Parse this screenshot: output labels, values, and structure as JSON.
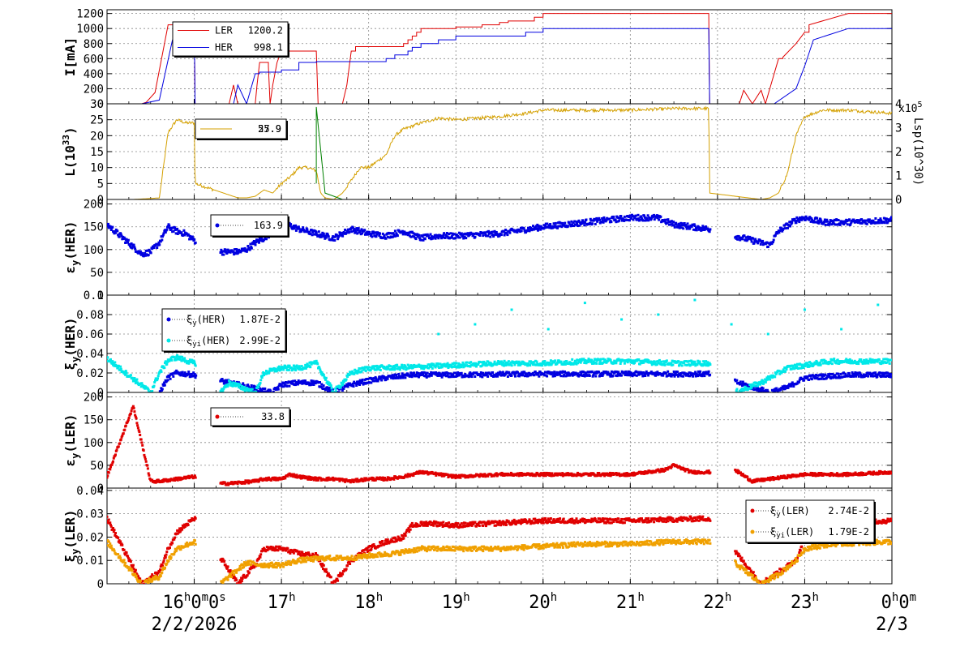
{
  "chart_data": [
    {
      "type": "line",
      "ylabel": "I[mA]",
      "yticks": [
        "0",
        "200",
        "400",
        "600",
        "800",
        "1000",
        "1200"
      ],
      "ylim": [
        0,
        1250
      ],
      "legend": [
        {
          "name": "LER",
          "value": "1200.2",
          "color": "#e00000"
        },
        {
          "name": "HER",
          "value": "998.1",
          "color": "#0000e0"
        }
      ],
      "series": [
        {
          "name": "LER",
          "color": "#e00000",
          "x": [
            15.0,
            15.3,
            15.4,
            15.45,
            15.55,
            15.7,
            15.85,
            16.0,
            16.01,
            16.4,
            16.45,
            16.5,
            16.6,
            16.7,
            16.72,
            16.75,
            16.8,
            16.85,
            16.87,
            16.9,
            16.95,
            17.0,
            17.2,
            17.3,
            17.4,
            17.42,
            17.6,
            17.7,
            17.75,
            17.8,
            17.85,
            18.0,
            18.2,
            18.3,
            18.4,
            18.45,
            18.5,
            18.55,
            18.6,
            18.7,
            19.0,
            19.3,
            19.5,
            19.6,
            19.9,
            20.0,
            20.5,
            21.0,
            21.9,
            21.91,
            22.2,
            22.25,
            22.3,
            22.4,
            22.5,
            22.55,
            22.6,
            22.7,
            22.75,
            22.9,
            23.0,
            23.05,
            23.5,
            24.0
          ],
          "y": [
            0,
            0,
            0,
            20,
            150,
            1050,
            1080,
            1050,
            0,
            0,
            250,
            0,
            0,
            0,
            250,
            550,
            550,
            500,
            0,
            250,
            550,
            700,
            700,
            700,
            700,
            0,
            0,
            0,
            250,
            700,
            760,
            760,
            760,
            760,
            800,
            850,
            900,
            950,
            1000,
            1000,
            1020,
            1050,
            1080,
            1100,
            1150,
            1200,
            1200,
            1200,
            1200,
            0,
            0,
            0,
            180,
            0,
            180,
            0,
            200,
            600,
            620,
            800,
            950,
            1050,
            1200,
            1200
          ]
        },
        {
          "name": "HER",
          "color": "#0000e0",
          "x": [
            15.0,
            15.4,
            15.6,
            15.75,
            15.9,
            16.0,
            16.01,
            16.3,
            16.45,
            16.5,
            16.6,
            16.7,
            16.75,
            17.0,
            17.2,
            17.4,
            17.5,
            18.0,
            18.2,
            18.3,
            18.45,
            18.5,
            18.6,
            18.8,
            19.0,
            19.5,
            19.8,
            20.0,
            21.0,
            21.9,
            21.91,
            22.6,
            22.65,
            22.9,
            23.0,
            23.1,
            23.5,
            24.0
          ],
          "y": [
            0,
            0,
            50,
            850,
            1000,
            1000,
            0,
            0,
            0,
            250,
            0,
            400,
            420,
            450,
            550,
            560,
            560,
            560,
            600,
            650,
            700,
            750,
            800,
            850,
            900,
            900,
            950,
            1000,
            1000,
            1000,
            0,
            0,
            0,
            200,
            500,
            850,
            1000,
            1000
          ]
        }
      ]
    },
    {
      "type": "line",
      "ylabel": "L(10^33)",
      "ylabel_text": "L(10",
      "ylabel_exp": "33",
      "ylabel_close": ")",
      "yticks": [
        "0",
        "5",
        "10",
        "15",
        "20",
        "25",
        "30"
      ],
      "ylim": [
        0,
        30
      ],
      "ylabel_right": "Lsp(10^30)",
      "yticks_right": [
        "0",
        "1",
        "2",
        "3",
        "4"
      ],
      "ylim_right": [
        0,
        4
      ],
      "exp_label_right": "x10",
      "exp_label_right_power": "5",
      "legend": [
        {
          "value": "55.9",
          "value_overlap": "27.9",
          "color": "#d4a000"
        }
      ],
      "series": [
        {
          "name": "",
          "color": "#d4a000",
          "x": [
            15.0,
            15.3,
            15.5,
            15.6,
            15.7,
            15.8,
            15.9,
            16.0,
            16.01,
            16.5,
            16.6,
            16.7,
            16.8,
            16.9,
            17.0,
            17.1,
            17.2,
            17.3,
            17.4,
            17.45,
            17.5,
            17.6,
            17.7,
            17.8,
            17.9,
            18.0,
            18.2,
            18.3,
            18.4,
            18.6,
            18.8,
            19.0,
            19.5,
            19.8,
            20.0,
            20.5,
            21.0,
            21.5,
            21.9,
            21.91,
            22.5,
            22.6,
            22.7,
            22.8,
            22.9,
            23.0,
            23.2,
            23.5,
            24.0
          ],
          "y": [
            0,
            0,
            0.3,
            0.5,
            21,
            25,
            24,
            24,
            5,
            0.5,
            0.5,
            1,
            3,
            2,
            5,
            7,
            10,
            10,
            9,
            2,
            0.5,
            0,
            2,
            6,
            10,
            10,
            14,
            20,
            22,
            24,
            25.5,
            25,
            26,
            27,
            28,
            28,
            28,
            28.5,
            28.5,
            2,
            0,
            0.5,
            2,
            8,
            20,
            26,
            28,
            28,
            27
          ]
        },
        {
          "name": "",
          "color": "#008000",
          "x": [
            17.4,
            17.4,
            17.5,
            17.7
          ],
          "y": [
            5,
            29,
            2,
            0
          ]
        }
      ]
    },
    {
      "type": "scatter",
      "ylabel": "εy(HER)",
      "ylabel_main": "ε",
      "ylabel_sub": "y",
      "ylabel_rest": "(HER)",
      "yticks": [
        "0",
        "50",
        "100",
        "150",
        "200"
      ],
      "ylim": [
        0,
        210
      ],
      "legend": [
        {
          "value": "163.9",
          "color": "#0000e0"
        }
      ],
      "series": [
        {
          "name": "",
          "color": "#0000e0",
          "x": [
            15.0,
            15.4,
            15.5,
            15.6,
            15.7,
            15.8,
            15.9,
            16.0,
            16.3,
            16.5,
            16.6,
            16.7,
            16.8,
            16.9,
            17.0,
            17.2,
            17.4,
            17.6,
            17.8,
            18.0,
            18.2,
            18.4,
            18.6,
            18.8,
            19.0,
            19.5,
            20.0,
            20.5,
            21.0,
            21.3,
            21.5,
            21.7,
            21.9,
            22.6,
            22.7,
            22.9,
            23.0,
            23.2,
            23.5,
            24.0
          ],
          "y": [
            155,
            90,
            95,
            115,
            150,
            140,
            135,
            120,
            95,
            95,
            100,
            115,
            125,
            140,
            160,
            145,
            135,
            125,
            145,
            135,
            130,
            140,
            125,
            130,
            130,
            135,
            150,
            160,
            170,
            170,
            155,
            150,
            145,
            110,
            140,
            165,
            170,
            160,
            160,
            165
          ]
        }
      ]
    },
    {
      "type": "scatter",
      "ylabel": "ξy(HER)",
      "ylabel_main": "ξ",
      "ylabel_sub": "y",
      "ylabel_rest": "(HER)",
      "yticks": [
        "0",
        "0.02",
        "0.04",
        "0.06",
        "0.08",
        "0.1"
      ],
      "ylim": [
        0,
        0.1
      ],
      "legend": [
        {
          "name": "ξy(HER)",
          "main": "ξ",
          "sub": "y",
          "rest": "(HER)",
          "value": "1.87E-2",
          "color": "#0000e0"
        },
        {
          "name": "ξyi(HER)",
          "main": "ξ",
          "sub": "yi",
          "rest": "(HER)",
          "value": "2.99E-2",
          "color": "#00e8e8"
        }
      ],
      "series": [
        {
          "name": "ξy(HER)",
          "color": "#0000e0",
          "x": [
            15.6,
            15.7,
            15.8,
            16.0,
            16.9,
            17.0,
            17.2,
            17.4,
            17.6,
            17.8,
            18.0,
            18.2,
            18.5,
            19.0,
            20.0,
            21.0,
            21.9,
            22.6,
            22.8,
            23.0,
            23.5,
            24.0
          ],
          "y": [
            0,
            0.015,
            0.02,
            0.018,
            0,
            0.008,
            0.01,
            0.01,
            0,
            0.008,
            0.012,
            0.015,
            0.018,
            0.018,
            0.019,
            0.019,
            0.019,
            0,
            0.005,
            0.015,
            0.018,
            0.018
          ]
        },
        {
          "name": "ξyi(HER)",
          "color": "#00e8e8",
          "x": [
            15.0,
            15.5,
            15.6,
            15.7,
            15.8,
            16.0,
            16.3,
            16.4,
            16.7,
            16.8,
            17.0,
            17.2,
            17.4,
            17.6,
            17.8,
            18.0,
            18.5,
            19.0,
            19.5,
            20.0,
            20.5,
            21.0,
            21.5,
            21.9,
            22.2,
            22.5,
            22.6,
            22.7,
            22.8,
            23.0,
            23.3,
            24.0
          ],
          "y": [
            0.035,
            0,
            0.02,
            0.033,
            0.036,
            0.03,
            0,
            0.01,
            0,
            0.02,
            0.025,
            0.025,
            0.03,
            0,
            0.02,
            0.025,
            0.026,
            0.028,
            0.03,
            0.03,
            0.032,
            0.032,
            0.03,
            0.03,
            0,
            0.01,
            0.015,
            0.02,
            0.025,
            0.028,
            0.032,
            0.032
          ]
        }
      ],
      "outliers_y": [
        0.06,
        0.07,
        0.085,
        0.065,
        0.092,
        0.075,
        0.08,
        0.095,
        0.07,
        0.06,
        0.085,
        0.065,
        0.09
      ]
    },
    {
      "type": "scatter",
      "ylabel": "εy(LER)",
      "ylabel_main": "ε",
      "ylabel_sub": "y",
      "ylabel_rest": "(LER)",
      "yticks": [
        "0",
        "50",
        "100",
        "150",
        "200"
      ],
      "ylim": [
        0,
        210
      ],
      "legend": [
        {
          "value": "33.8",
          "color": "#e00000"
        }
      ],
      "series": [
        {
          "name": "",
          "color": "#e00000",
          "x": [
            15.0,
            15.3,
            15.5,
            15.6,
            15.8,
            16.0,
            16.3,
            16.4,
            16.7,
            16.8,
            17.0,
            17.1,
            17.2,
            17.4,
            17.6,
            17.8,
            18.0,
            18.2,
            18.4,
            18.6,
            19.0,
            19.5,
            20.0,
            20.5,
            21.0,
            21.4,
            21.5,
            21.7,
            21.9,
            22.2,
            22.4,
            22.6,
            22.8,
            23.0,
            23.5,
            24.0
          ],
          "y": [
            25,
            180,
            15,
            15,
            20,
            25,
            10,
            10,
            15,
            20,
            20,
            30,
            25,
            20,
            20,
            15,
            20,
            20,
            25,
            35,
            25,
            30,
            30,
            30,
            30,
            40,
            50,
            35,
            35,
            40,
            15,
            20,
            25,
            30,
            30,
            35
          ]
        }
      ]
    },
    {
      "type": "scatter",
      "ylabel": "ξy(LER)",
      "ylabel_main": "ξ",
      "ylabel_sub": "y",
      "ylabel_rest": "(LER)",
      "yticks": [
        "0",
        "0.01",
        "0.02",
        "0.03",
        "0.04"
      ],
      "ylim": [
        0,
        0.041
      ],
      "legend": [
        {
          "name": "ξy(LER)",
          "main": "ξ",
          "sub": "y",
          "rest": "(LER)",
          "value": "2.74E-2",
          "color": "#e00000"
        },
        {
          "name": "ξyi(LER)",
          "main": "ξ",
          "sub": "yi",
          "rest": "(LER)",
          "value": "1.79E-2",
          "color": "#f0a000"
        }
      ],
      "series": [
        {
          "name": "ξy(LER)",
          "color": "#e00000",
          "x": [
            15.0,
            15.4,
            15.6,
            15.7,
            15.8,
            15.9,
            16.0,
            16.5,
            16.7,
            16.8,
            17.0,
            17.2,
            17.4,
            17.6,
            17.8,
            18.0,
            18.2,
            18.4,
            18.5,
            18.7,
            19.0,
            19.5,
            20.0,
            21.0,
            21.9,
            22.5,
            22.7,
            22.9,
            23.0,
            23.2,
            24.0
          ],
          "y": [
            0.028,
            0,
            0.005,
            0.015,
            0.022,
            0.025,
            0.028,
            0,
            0.008,
            0.015,
            0.015,
            0.013,
            0.012,
            0,
            0.01,
            0.015,
            0.018,
            0.02,
            0.025,
            0.026,
            0.025,
            0.026,
            0.027,
            0.027,
            0.028,
            0,
            0.005,
            0.01,
            0.02,
            0.026,
            0.027
          ]
        },
        {
          "name": "ξyi(LER)",
          "color": "#f0a000",
          "x": [
            15.0,
            15.4,
            15.6,
            15.7,
            15.8,
            16.0,
            16.3,
            16.6,
            16.8,
            17.0,
            17.2,
            17.5,
            17.8,
            18.0,
            18.3,
            18.6,
            19.0,
            19.5,
            20.0,
            20.5,
            21.0,
            21.5,
            21.9,
            22.5,
            22.7,
            22.9,
            23.0,
            23.3,
            24.0
          ],
          "y": [
            0.018,
            0,
            0.003,
            0.01,
            0.015,
            0.018,
            0,
            0.009,
            0.008,
            0.008,
            0.01,
            0.011,
            0.011,
            0.012,
            0.013,
            0.015,
            0.015,
            0.015,
            0.016,
            0.017,
            0.017,
            0.018,
            0.018,
            0,
            0.004,
            0.01,
            0.015,
            0.017,
            0.018
          ]
        }
      ]
    }
  ],
  "x_axis": {
    "xlim": [
      15.0,
      24.0
    ],
    "ticks": [
      {
        "value": 16,
        "base": "16",
        "sup": "h",
        "suffix": "0",
        "sup2": "m",
        "suffix2": "0",
        "sup3": "s"
      },
      {
        "value": 17,
        "base": "17",
        "sup": "h"
      },
      {
        "value": 18,
        "base": "18",
        "sup": "h"
      },
      {
        "value": 19,
        "base": "19",
        "sup": "h"
      },
      {
        "value": 20,
        "base": "20",
        "sup": "h"
      },
      {
        "value": 21,
        "base": "21",
        "sup": "h"
      },
      {
        "value": 22,
        "base": "22",
        "sup": "h"
      },
      {
        "value": 23,
        "base": "23",
        "sup": "h"
      },
      {
        "value": 24,
        "base": "0",
        "sup": "h",
        "suffix": "0",
        "sup2": "m"
      }
    ],
    "date_left": "2/2/2026",
    "date_right": "2/3"
  }
}
